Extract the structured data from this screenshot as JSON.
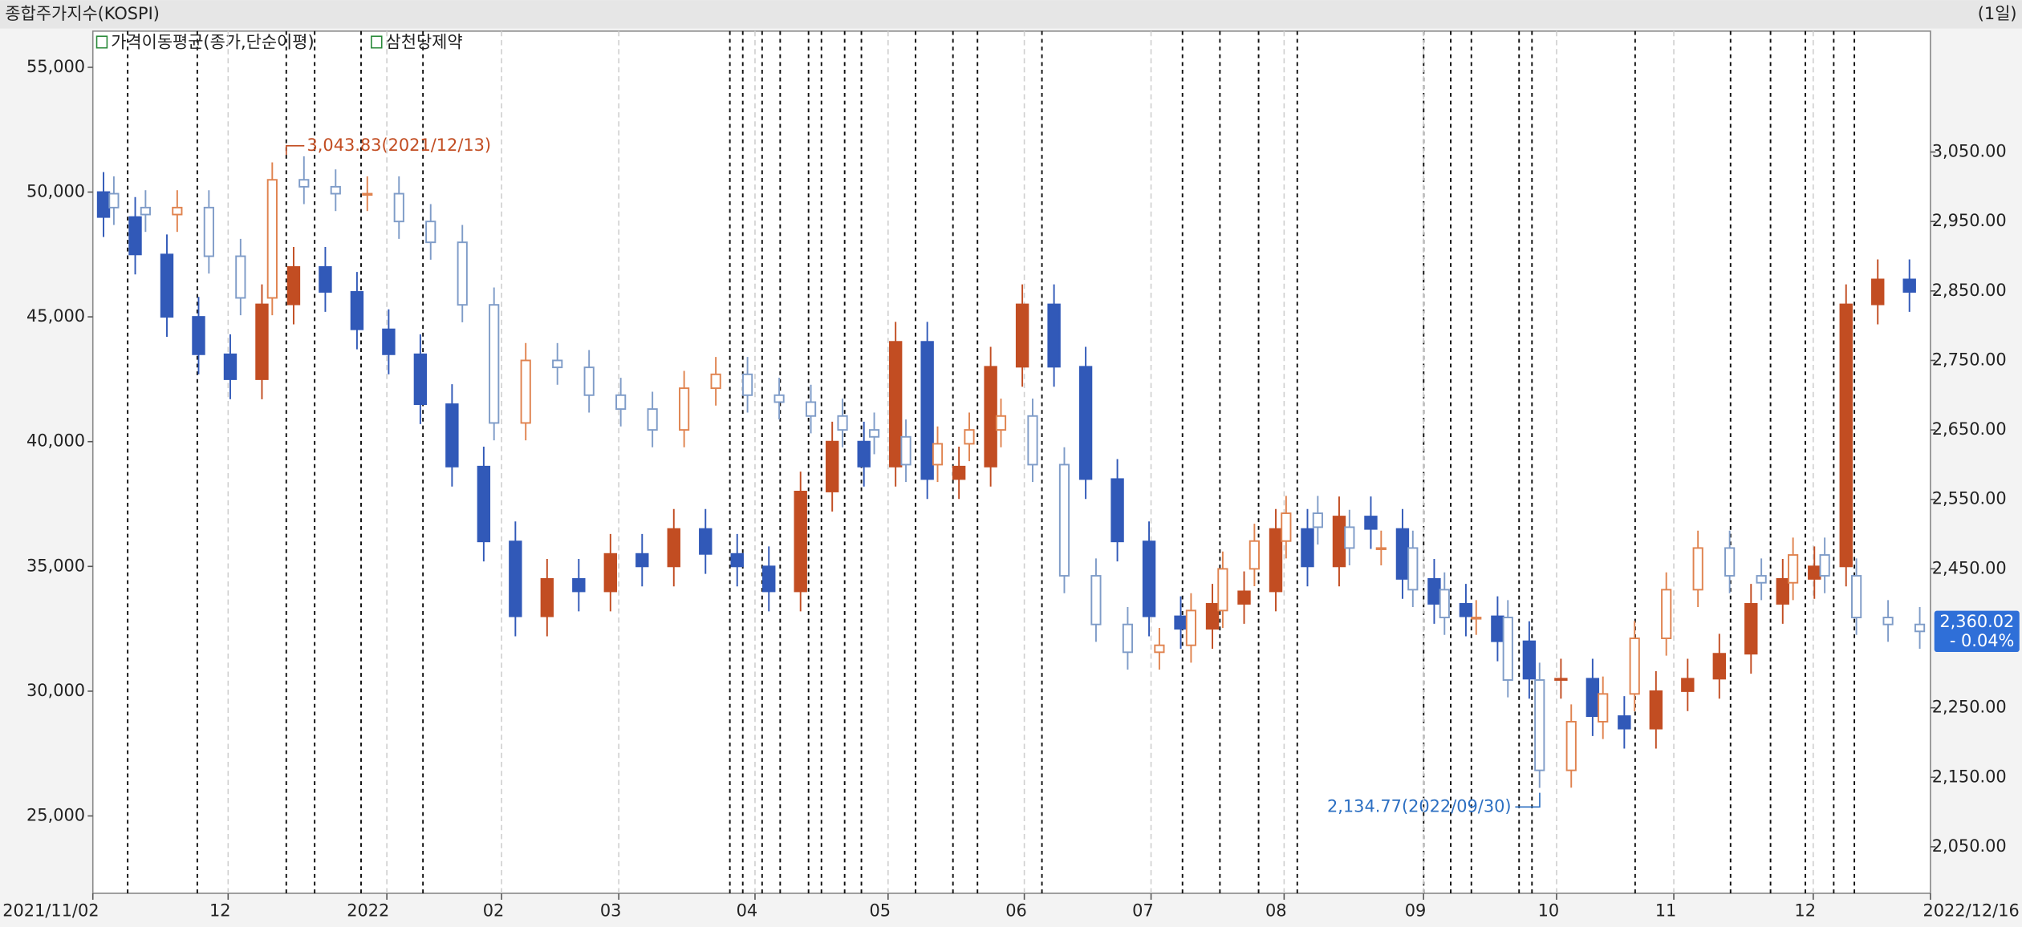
{
  "chart_data": {
    "type": "candlestick",
    "title": "종합주가지수(KOSPI)",
    "period": "(1일)",
    "legend": [
      "가격이동평균(종가,단순이평)",
      "삼천당제약"
    ],
    "xlim": [
      0,
      58
    ],
    "xticks": [
      {
        "value": 0,
        "label": "2021/11/02"
      },
      {
        "value": 4.27,
        "label": "12"
      },
      {
        "value": 9.28,
        "label": "2022"
      },
      {
        "value": 12.9,
        "label": "02"
      },
      {
        "value": 16.6,
        "label": "03"
      },
      {
        "value": 20.9,
        "label": "04"
      },
      {
        "value": 25.1,
        "label": "05"
      },
      {
        "value": 29.4,
        "label": "06"
      },
      {
        "value": 33.4,
        "label": "07"
      },
      {
        "value": 37.6,
        "label": "08"
      },
      {
        "value": 42.0,
        "label": "09"
      },
      {
        "value": 46.2,
        "label": "10"
      },
      {
        "value": 49.9,
        "label": "11"
      },
      {
        "value": 54.3,
        "label": "12"
      },
      {
        "value": 58,
        "label": "2022/12/16"
      }
    ],
    "ylim": [
      21900,
      56450
    ],
    "yticks": [
      {
        "value": 25000,
        "label": "25,000"
      },
      {
        "value": 30000,
        "label": "30,000"
      },
      {
        "value": 35000,
        "label": "35,000"
      },
      {
        "value": 40000,
        "label": "40,000"
      },
      {
        "value": 45000,
        "label": "45,000"
      },
      {
        "value": 50000,
        "label": "50,000"
      },
      {
        "value": 55000,
        "label": "55,000"
      }
    ],
    "y2lim": [
      1983,
      3224
    ],
    "y2ticks": [
      {
        "value": 2050,
        "label": "2,050.00"
      },
      {
        "value": 2150,
        "label": "2,150.00"
      },
      {
        "value": 2250,
        "label": "2,250.00"
      },
      {
        "value": 2450,
        "label": "2,450.00"
      },
      {
        "value": 2550,
        "label": "2,550.00"
      },
      {
        "value": 2650,
        "label": "2,650.00"
      },
      {
        "value": 2750,
        "label": "2,750.00"
      },
      {
        "value": 2850,
        "label": "2,850.00"
      },
      {
        "value": 2950,
        "label": "2,950.00"
      },
      {
        "value": 3050,
        "label": "3,050.00"
      }
    ],
    "series": [
      {
        "name": "삼천당제약",
        "axis": "y",
        "style": "solid",
        "color_up": "#c24d22",
        "color_down": "#3159b8",
        "open": [
          50000,
          49000,
          47500,
          45000,
          43500,
          42500,
          45500,
          47000,
          46000,
          44500,
          43500,
          41500,
          39000,
          36000,
          33000,
          34500,
          34000,
          35500,
          35000,
          36500,
          35500,
          35000,
          34000,
          38000,
          40000,
          39000,
          44000,
          38500,
          39000,
          43000,
          45500,
          43000,
          38500,
          36000,
          33000,
          32500,
          33500,
          34000,
          36500,
          35000,
          37000,
          36500,
          34500,
          33500,
          33000,
          32000,
          30500,
          30500,
          29000,
          28500,
          30000,
          30500,
          31500,
          33500,
          34500,
          35000,
          45500,
          46500
        ],
        "high": [
          50800,
          49800,
          48300,
          45800,
          44300,
          46300,
          47800,
          47800,
          46800,
          45300,
          44300,
          42300,
          39800,
          36800,
          35300,
          35300,
          36300,
          36300,
          37300,
          37300,
          36300,
          35800,
          38800,
          40800,
          40800,
          44800,
          44800,
          39800,
          43800,
          46300,
          46300,
          43800,
          39300,
          36800,
          33800,
          34300,
          34800,
          37300,
          37300,
          37800,
          37800,
          37300,
          35300,
          34300,
          33800,
          32800,
          31300,
          31300,
          29800,
          30800,
          31300,
          32300,
          34300,
          35300,
          35800,
          46300,
          47300,
          47300
        ],
        "low": [
          48200,
          46700,
          44200,
          42700,
          41700,
          41700,
          44700,
          45200,
          43700,
          42700,
          40700,
          38200,
          35200,
          32200,
          32200,
          33200,
          33200,
          34200,
          34200,
          34700,
          34200,
          33200,
          33200,
          37200,
          38200,
          38200,
          37700,
          37700,
          38200,
          42200,
          42200,
          37700,
          35200,
          32200,
          31700,
          31700,
          32700,
          33200,
          34200,
          34200,
          35700,
          33700,
          32700,
          32200,
          31200,
          29700,
          29700,
          28200,
          27700,
          27700,
          29200,
          29700,
          30700,
          32700,
          33700,
          34200,
          44700,
          45200
        ],
        "close": [
          49000,
          47500,
          45000,
          43500,
          42500,
          45500,
          47000,
          46000,
          44500,
          43500,
          41500,
          39000,
          36000,
          33000,
          34500,
          34000,
          35500,
          35000,
          36500,
          35500,
          35000,
          34000,
          38000,
          40000,
          39000,
          44000,
          38500,
          39000,
          43000,
          45500,
          43000,
          38500,
          36000,
          33000,
          32500,
          33500,
          34000,
          36500,
          35000,
          37000,
          36500,
          34500,
          33500,
          33000,
          32000,
          30500,
          30500,
          29000,
          28500,
          30000,
          30500,
          31500,
          33500,
          34500,
          35000,
          45500,
          46500,
          46000
        ]
      },
      {
        "name": "종합주가지수(KOSPI)",
        "axis": "y2",
        "style": "hollow",
        "color_up": "#e0834f",
        "color_down": "#7f9cc8",
        "open": [
          2990,
          2970,
          2960,
          2970,
          2900,
          2840,
          3010,
          3000,
          2990,
          2990,
          2950,
          2920,
          2830,
          2660,
          2750,
          2740,
          2700,
          2680,
          2650,
          2710,
          2730,
          2700,
          2690,
          2670,
          2650,
          2640,
          2600,
          2630,
          2650,
          2670,
          2600,
          2440,
          2370,
          2330,
          2340,
          2390,
          2450,
          2490,
          2530,
          2510,
          2480,
          2480,
          2420,
          2380,
          2380,
          2290,
          2160,
          2230,
          2270,
          2350,
          2420,
          2480,
          2440,
          2430,
          2470,
          2440,
          2380,
          2370
        ],
        "high": [
          3015,
          2995,
          2995,
          2995,
          2925,
          3035,
          3043.83,
          3025,
          3015,
          3015,
          2975,
          2945,
          2855,
          2775,
          2775,
          2765,
          2725,
          2705,
          2735,
          2755,
          2755,
          2725,
          2715,
          2695,
          2675,
          2665,
          2655,
          2675,
          2695,
          2695,
          2625,
          2465,
          2395,
          2365,
          2415,
          2475,
          2515,
          2555,
          2555,
          2535,
          2505,
          2505,
          2445,
          2405,
          2405,
          2315,
          2255,
          2295,
          2375,
          2445,
          2505,
          2505,
          2465,
          2495,
          2495,
          2465,
          2405,
          2395
        ],
        "low": [
          2945,
          2935,
          2935,
          2875,
          2815,
          2815,
          2975,
          2965,
          2965,
          2925,
          2895,
          2805,
          2635,
          2635,
          2715,
          2675,
          2655,
          2625,
          2625,
          2685,
          2675,
          2665,
          2645,
          2625,
          2615,
          2575,
          2575,
          2605,
          2625,
          2575,
          2415,
          2345,
          2305,
          2305,
          2315,
          2365,
          2425,
          2465,
          2485,
          2455,
          2455,
          2395,
          2355,
          2355,
          2265,
          2134.77,
          2135,
          2205,
          2245,
          2325,
          2395,
          2415,
          2405,
          2405,
          2415,
          2355,
          2345,
          2335
        ],
        "close": [
          2970,
          2960,
          2970,
          2900,
          2840,
          3010,
          3000,
          2990,
          2990,
          2950,
          2920,
          2830,
          2660,
          2750,
          2740,
          2700,
          2680,
          2650,
          2710,
          2730,
          2700,
          2690,
          2670,
          2650,
          2640,
          2600,
          2630,
          2650,
          2670,
          2600,
          2440,
          2370,
          2330,
          2340,
          2390,
          2450,
          2490,
          2530,
          2510,
          2480,
          2480,
          2420,
          2380,
          2380,
          2290,
          2160,
          2230,
          2270,
          2350,
          2420,
          2480,
          2440,
          2430,
          2470,
          2440,
          2380,
          2370,
          2360.02
        ]
      }
    ],
    "annotations": [
      "3,043.83(2021/12/13)",
      "2,134.77(2022/09/30)"
    ],
    "last_label": [
      "2,360.02",
      "- 0.04%"
    ]
  }
}
